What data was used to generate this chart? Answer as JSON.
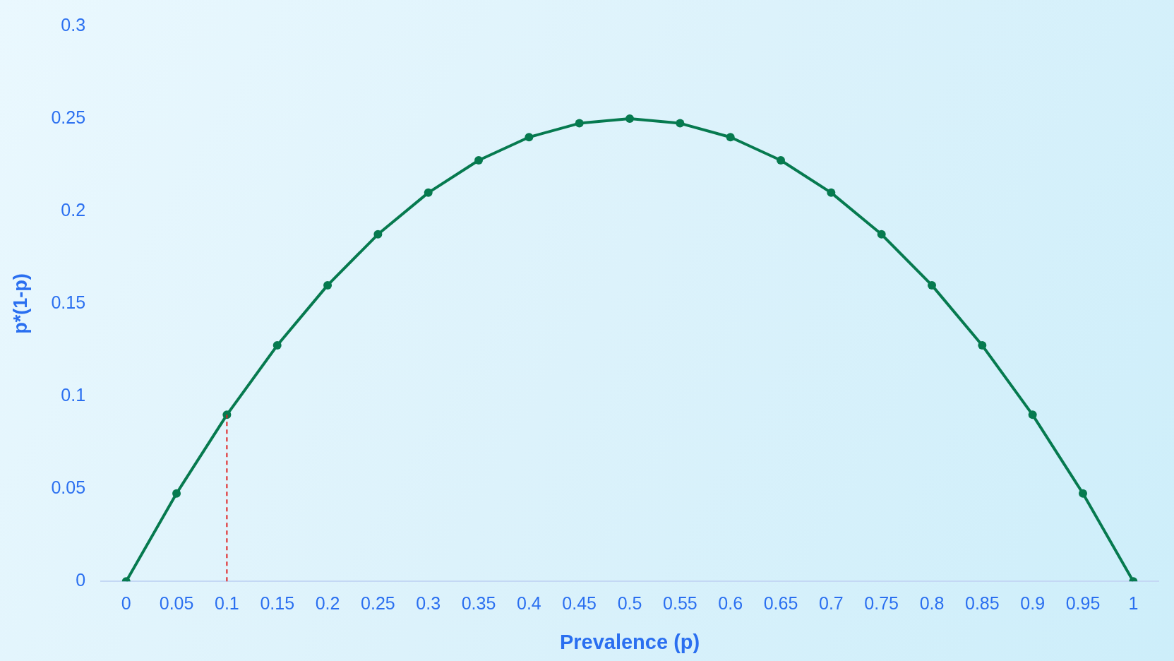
{
  "chart_data": {
    "type": "line",
    "xlabel": "Prevalence (p)",
    "ylabel": "p*(1-p)",
    "categories": [
      "0",
      "0.05",
      "0.1",
      "0.15",
      "0.2",
      "0.25",
      "0.3",
      "0.35",
      "0.4",
      "0.45",
      "0.5",
      "0.55",
      "0.6",
      "0.65",
      "0.7",
      "0.75",
      "0.8",
      "0.85",
      "0.9",
      "0.95",
      "1"
    ],
    "series": [
      {
        "color": "#067a4f",
        "values": [
          0,
          0.0475,
          0.09,
          0.1275,
          0.16,
          0.1875,
          0.21,
          0.2275,
          0.24,
          0.2475,
          0.25,
          0.2475,
          0.24,
          0.2275,
          0.21,
          0.1875,
          0.16,
          0.1275,
          0.09,
          0.0475,
          0
        ]
      }
    ],
    "ylim": [
      0,
      0.3
    ],
    "yticks": [
      0,
      0.05,
      0.1,
      0.15,
      0.2,
      0.25,
      0.3
    ],
    "ref_lines": [
      {
        "axis": "x",
        "value": "0.1",
        "color": "#e02020",
        "line_style": "dashed"
      }
    ],
    "grid": false,
    "legend": false,
    "marker": "circle",
    "line_style": "solid"
  }
}
